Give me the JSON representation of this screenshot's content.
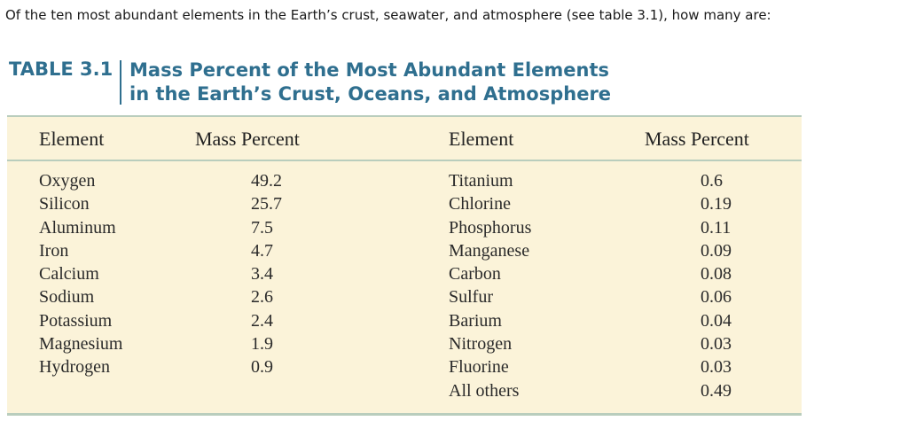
{
  "question": "Of the ten most abundant elements in the Earth’s crust, seawater, and atmosphere (see table 3.1), how many are:",
  "table": {
    "label": "TABLE 3.1",
    "title_line1": "Mass Percent of the Most Abundant Elements",
    "title_line2": "in the Earth’s Crust, Oceans, and Atmosphere",
    "headers": [
      "Element",
      "Mass Percent",
      "Element",
      "Mass Percent"
    ],
    "left_elements": [
      "Oxygen",
      "Silicon",
      "Aluminum",
      "Iron",
      "Calcium",
      "Sodium",
      "Potassium",
      "Magnesium",
      "Hydrogen"
    ],
    "left_values": [
      "49.2",
      "25.7",
      "7.5",
      "4.7",
      "3.4",
      "2.6",
      "2.4",
      "1.9",
      "0.9"
    ],
    "right_elements": [
      "Titanium",
      "Chlorine",
      "Phosphorus",
      "Manganese",
      "Carbon",
      "Sulfur",
      "Barium",
      "Nitrogen",
      "Fluorine",
      "All others"
    ],
    "right_values": [
      "0.6",
      "0.19",
      "0.11",
      "0.09",
      "0.08",
      "0.06",
      "0.04",
      "0.03",
      "0.03",
      "0.49"
    ]
  },
  "colors": {
    "title": "#2f6f8f",
    "table_background": "#fbf3d9",
    "rule": "#b9cdbd"
  }
}
